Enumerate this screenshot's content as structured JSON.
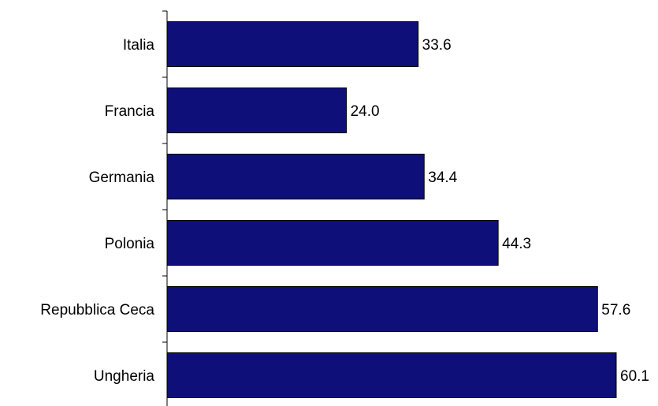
{
  "chart_data": {
    "type": "bar",
    "orientation": "horizontal",
    "categories": [
      "Italia",
      "Francia",
      "Germania",
      "Polonia",
      "Repubblica Ceca",
      "Ungheria"
    ],
    "values": [
      33.6,
      24.0,
      34.4,
      44.3,
      57.6,
      60.1
    ],
    "value_labels": [
      "33.6",
      "24.0",
      "34.4",
      "44.3",
      "57.6",
      "60.1"
    ],
    "title": "",
    "xlabel": "",
    "ylabel": "",
    "xlim": [
      0,
      60.1
    ],
    "grid": false,
    "legend": "none",
    "colors": {
      "bar_fill": "#0f0f7a",
      "bar_stroke": "#000000",
      "axis": "#000000",
      "text": "#000000"
    }
  }
}
